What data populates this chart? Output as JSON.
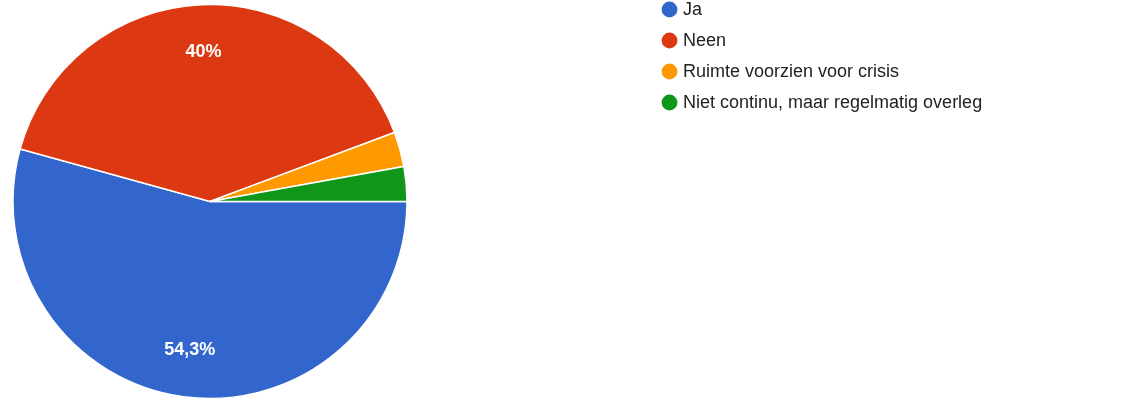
{
  "chart_data": {
    "type": "pie",
    "categories": [
      "Ja",
      "Neen",
      "Ruimte voorzien voor crisis",
      "Niet continu, maar regelmatig overleg"
    ],
    "values": [
      54.3,
      40,
      2.85,
      2.85
    ],
    "colors": [
      "#3366cc",
      "#dc3912",
      "#ff9900",
      "#109618"
    ],
    "value_labels": [
      "54,3%",
      "40%",
      null,
      null
    ],
    "legend": "right"
  }
}
